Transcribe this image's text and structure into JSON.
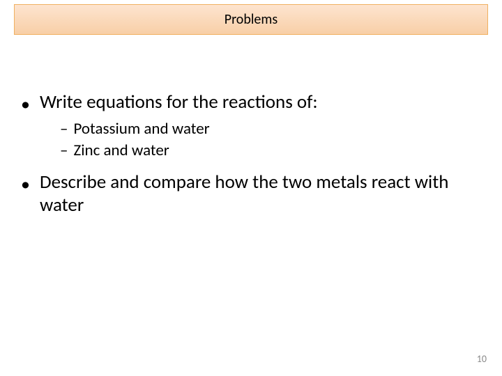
{
  "title_box": {
    "text": "Problems",
    "background_gradient_top": "#fde4cf",
    "background_gradient_bottom": "#f8cfa7",
    "border_color": "#f0b060",
    "title_fontsize": 20,
    "title_color": "#000000"
  },
  "content": {
    "bullets": [
      {
        "text": "Write equations for the reactions of:",
        "sub_items": [
          "Potassium and water",
          "Zinc and water"
        ]
      },
      {
        "text": "Describe and compare how the two metals react with water",
        "sub_items": []
      }
    ],
    "bullet_fontsize": 27,
    "sub_fontsize": 23,
    "bullet_color": "#000000"
  },
  "page_number": {
    "value": "10",
    "color": "#8a8a8a",
    "fontsize": 14
  },
  "background_color": "#ffffff"
}
